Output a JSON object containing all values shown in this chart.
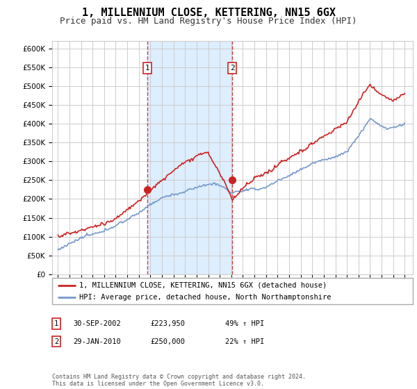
{
  "title": "1, MILLENNIUM CLOSE, KETTERING, NN15 6GX",
  "subtitle": "Price paid vs. HM Land Registry's House Price Index (HPI)",
  "title_fontsize": 11,
  "subtitle_fontsize": 9,
  "background_color": "#ffffff",
  "plot_bg_color": "#ffffff",
  "grid_color": "#cccccc",
  "hpi_line_color": "#7799cc",
  "price_line_color": "#cc2222",
  "shaded_region_color": "#ddeeff",
  "ylim": [
    0,
    620000
  ],
  "yticks": [
    0,
    50000,
    100000,
    150000,
    200000,
    250000,
    300000,
    350000,
    400000,
    450000,
    500000,
    550000,
    600000
  ],
  "sale1_year": 2002.75,
  "sale1_price": 223950,
  "sale1_label": "1",
  "sale2_year": 2010.08,
  "sale2_price": 250000,
  "sale2_label": "2",
  "legend_line1": "1, MILLENNIUM CLOSE, KETTERING, NN15 6GX (detached house)",
  "legend_line2": "HPI: Average price, detached house, North Northamptonshire",
  "table_rows": [
    [
      "1",
      "30-SEP-2002",
      "£223,950",
      "49% ↑ HPI"
    ],
    [
      "2",
      "29-JAN-2010",
      "£250,000",
      "22% ↑ HPI"
    ]
  ],
  "footer": "Contains HM Land Registry data © Crown copyright and database right 2024.\nThis data is licensed under the Open Government Licence v3.0."
}
